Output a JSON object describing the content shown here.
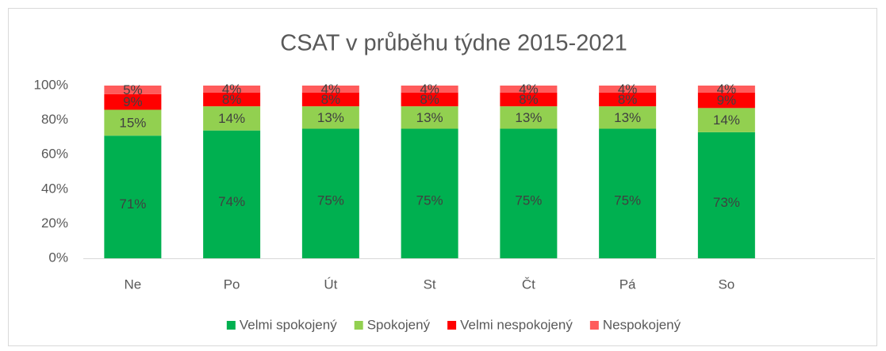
{
  "chart_data": {
    "type": "stacked_bar",
    "title": "CSAT v průběhu týdne 2015-2021",
    "categories": [
      "Ne",
      "Po",
      "Út",
      "St",
      "Čt",
      "Pá",
      "So",
      null
    ],
    "series": [
      {
        "name": "Velmi spokojený",
        "color": "#00b050",
        "values": [
          71,
          74,
          75,
          75,
          75,
          75,
          73,
          null
        ],
        "value_labels": [
          "71%",
          "74%",
          "75%",
          "75%",
          "75%",
          "75%",
          "73%",
          null
        ]
      },
      {
        "name": "Spokojený",
        "color": "#92d050",
        "values": [
          15,
          14,
          13,
          13,
          13,
          13,
          14,
          null
        ],
        "value_labels": [
          "15%",
          "14%",
          "13%",
          "13%",
          "13%",
          "13%",
          "14%",
          null
        ]
      },
      {
        "name": "Velmi nespokojený",
        "color": "#ff0000",
        "values": [
          9,
          8,
          8,
          8,
          8,
          8,
          9,
          null
        ],
        "value_labels": [
          "9%",
          "8%",
          "8%",
          "8%",
          "8%",
          "8%",
          "9%",
          null
        ]
      },
      {
        "name": "Nespokojený",
        "color": "#ff5b5b",
        "values": [
          5,
          4,
          4,
          4,
          4,
          4,
          4,
          null
        ],
        "value_labels": [
          "5%",
          "4%",
          "4%",
          "4%",
          "4%",
          "4%",
          "4%",
          null
        ]
      }
    ],
    "ylim": [
      0,
      100
    ],
    "yticks": [
      {
        "value": 0,
        "label": "0%"
      },
      {
        "value": 20,
        "label": "20%"
      },
      {
        "value": 40,
        "label": "40%"
      },
      {
        "value": 60,
        "label": "60%"
      },
      {
        "value": 80,
        "label": "80%"
      },
      {
        "value": 100,
        "label": "100%"
      }
    ],
    "grid": false,
    "legend": "bottom"
  }
}
